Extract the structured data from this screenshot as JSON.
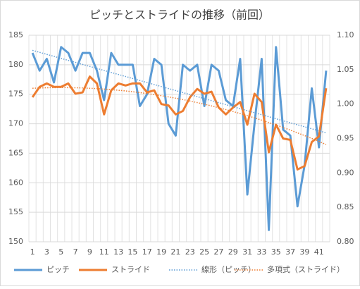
{
  "chart_data": {
    "type": "line",
    "title": "ピッチとストライドの推移（前回）",
    "categories": [
      1,
      null,
      3,
      null,
      5,
      null,
      7,
      null,
      9,
      null,
      11,
      null,
      13,
      null,
      15,
      null,
      17,
      null,
      19,
      null,
      21,
      null,
      23,
      null,
      25,
      null,
      27,
      null,
      29,
      null,
      31,
      null,
      33,
      null,
      35,
      null,
      37,
      null,
      39,
      null,
      41,
      null
    ],
    "series": [
      {
        "name": "ピッチ",
        "color": "#5b9bd5",
        "values": [
          182,
          179,
          181,
          177,
          183,
          182,
          179,
          182,
          182,
          179,
          174,
          182,
          180,
          180,
          180,
          173,
          175,
          181,
          180,
          170,
          168,
          180,
          179,
          180,
          173,
          180,
          179,
          174,
          173,
          181,
          158,
          170,
          181,
          152,
          183,
          169,
          168,
          156,
          163,
          176,
          166,
          179
        ]
      },
      {
        "name": "ストライド",
        "color": "#ed7d31",
        "axis": "y2",
        "values": [
          1.01,
          1.025,
          1.03,
          1.025,
          1.025,
          1.03,
          1.015,
          1.017,
          1.04,
          1.03,
          0.985,
          1.02,
          1.03,
          1.027,
          1.03,
          1.03,
          1.017,
          1.02,
          1.0,
          0.998,
          0.985,
          0.99,
          1.01,
          1.022,
          1.015,
          1.018,
          0.995,
          0.985,
          0.995,
          1.003,
          0.97,
          1.015,
          1.003,
          0.93,
          0.97,
          0.95,
          0.948,
          0.905,
          0.91,
          0.945,
          0.953,
          1.023
        ]
      }
    ],
    "trendlines": [
      {
        "name": "線形（ピッチ）",
        "series": 0,
        "kind": "linear",
        "color": "#5b9bd5"
      },
      {
        "name": "多項式（ストライド）",
        "series": 1,
        "kind": "polynomial",
        "order": 2,
        "color": "#ed7d31"
      }
    ],
    "ylim": [
      150,
      185
    ],
    "yticks": [
      150,
      155,
      160,
      165,
      170,
      175,
      180,
      185
    ],
    "y2lim": [
      0.8,
      1.1
    ],
    "y2ticks": [
      {
        "value": 0.8,
        "label": "0.80"
      },
      {
        "value": 0.85,
        "label": "0.85"
      },
      {
        "value": 0.9,
        "label": "0.90"
      },
      {
        "value": 0.95,
        "label": "0.95"
      },
      {
        "value": 1.0,
        "label": "1.00"
      },
      {
        "value": 1.05,
        "label": "1.05"
      },
      {
        "value": 1.1,
        "label": "1.10"
      }
    ],
    "grid": true,
    "legend": "bottom"
  }
}
